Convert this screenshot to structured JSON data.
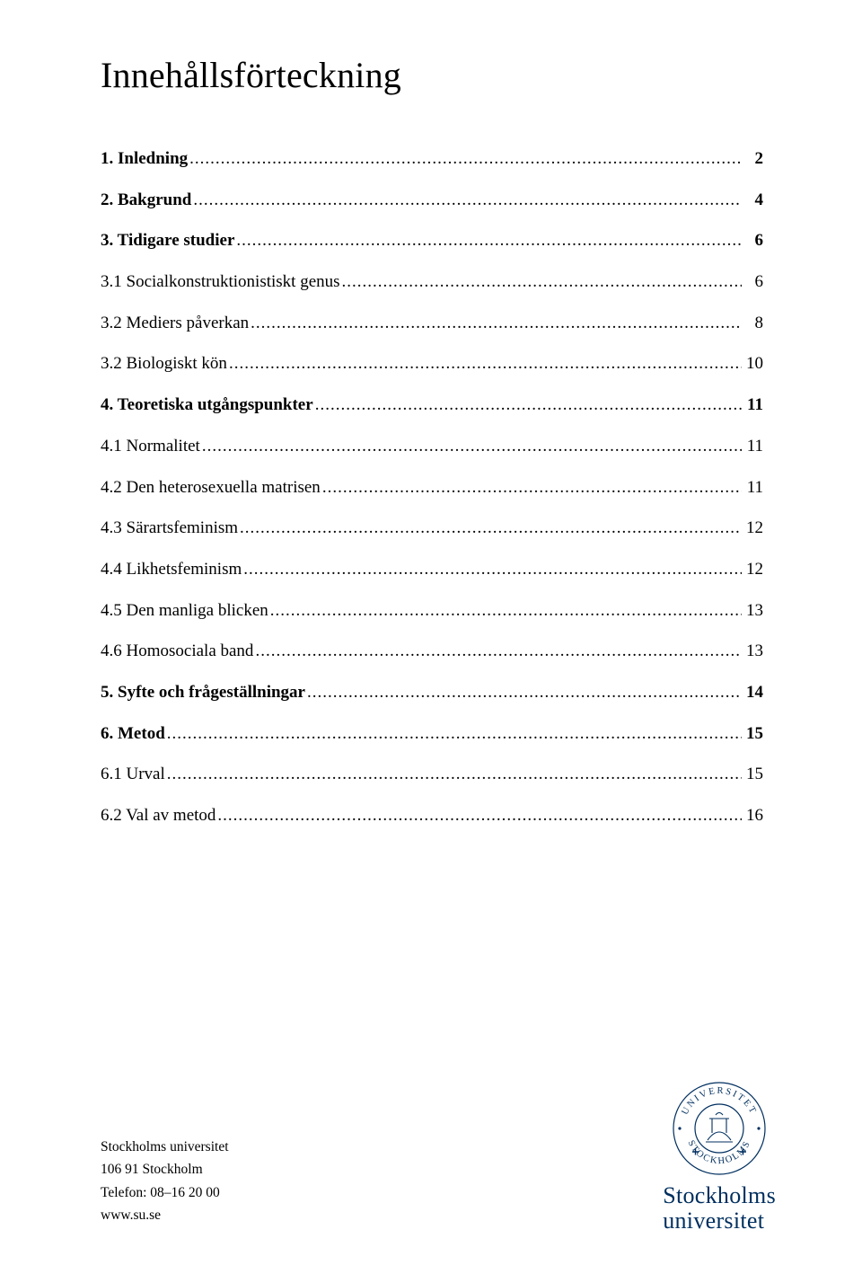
{
  "colors": {
    "text": "#000000",
    "brand": "#002f5f",
    "background": "#ffffff"
  },
  "typography": {
    "title_fontsize": 40,
    "toc_fontsize": 19,
    "footer_fontsize": 15.5,
    "wordmark_fontsize": 26,
    "font_family": "Times New Roman"
  },
  "title": "Innehållsförteckning",
  "toc": [
    {
      "label": "1. Inledning",
      "page": "2",
      "bold": true
    },
    {
      "label": "2. Bakgrund",
      "page": "4",
      "bold": true
    },
    {
      "label": "3. Tidigare studier",
      "page": "6",
      "bold": true
    },
    {
      "label": "3.1 Socialkonstruktionistiskt genus",
      "page": "6",
      "bold": false
    },
    {
      "label": "3.2 Mediers påverkan",
      "page": "8",
      "bold": false
    },
    {
      "label": "3.2 Biologiskt kön",
      "page": "10",
      "bold": false
    },
    {
      "label": "4. Teoretiska utgångspunkter",
      "page": "11",
      "bold": true
    },
    {
      "label": "4.1 Normalitet",
      "page": "11",
      "bold": false
    },
    {
      "label": "4.2 Den heterosexuella matrisen",
      "page": "11",
      "bold": false
    },
    {
      "label": "4.3 Särartsfeminism",
      "page": "12",
      "bold": false
    },
    {
      "label": "4.4 Likhetsfeminism",
      "page": "12",
      "bold": false
    },
    {
      "label": "4.5 Den manliga blicken",
      "page": "13",
      "bold": false
    },
    {
      "label": "4.6 Homosociala band",
      "page": "13",
      "bold": false
    },
    {
      "label": "5. Syfte och frågeställningar",
      "page": "14",
      "bold": true
    },
    {
      "label": "6. Metod",
      "page": "15",
      "bold": true
    },
    {
      "label": "6.1 Urval",
      "page": "15",
      "bold": false
    },
    {
      "label": "6.2 Val av metod",
      "page": "16",
      "bold": false
    }
  ],
  "footer": {
    "line1": "Stockholms universitet",
    "line2": "106 91 Stockholm",
    "line3": "Telefon: 08–16 20 00",
    "line4": "www.su.se"
  },
  "wordmark": {
    "line1": "Stockholms",
    "line2": "universitet"
  }
}
